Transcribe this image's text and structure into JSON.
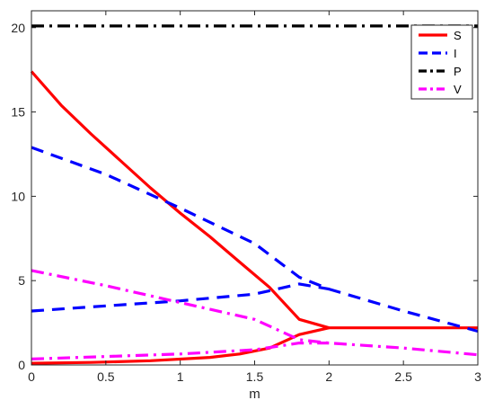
{
  "chart_data": {
    "type": "line",
    "title": "",
    "xlabel": "m",
    "ylabel": "",
    "xlim": [
      0,
      3
    ],
    "ylim": [
      0,
      21
    ],
    "xticks": [
      0,
      0.5,
      1,
      1.5,
      2,
      2.5,
      3
    ],
    "xtick_labels": [
      "0",
      "0.5",
      "1",
      "1.5",
      "2",
      "2.5",
      "3"
    ],
    "yticks": [
      0,
      5,
      10,
      15,
      20
    ],
    "ytick_labels": [
      "0",
      "5",
      "10",
      "15",
      "20"
    ],
    "grid": false,
    "legend_position": "top-right",
    "legend": [
      {
        "name": "S",
        "color": "#ff0000",
        "style": "solid"
      },
      {
        "name": "I",
        "color": "#0000ff",
        "style": "dashed"
      },
      {
        "name": "P",
        "color": "#000000",
        "style": "dashdot"
      },
      {
        "name": "V",
        "color": "#ff00ff",
        "style": "dashdot"
      }
    ],
    "series": [
      {
        "name": "S",
        "color": "#ff0000",
        "style": "solid",
        "branch": "upper",
        "points": [
          [
            0,
            17.4
          ],
          [
            0.2,
            15.4
          ],
          [
            0.4,
            13.7
          ],
          [
            0.6,
            12.1
          ],
          [
            0.8,
            10.5
          ],
          [
            1.0,
            9.0
          ],
          [
            1.2,
            7.6
          ],
          [
            1.4,
            6.1
          ],
          [
            1.6,
            4.6
          ],
          [
            1.8,
            2.7
          ],
          [
            2.0,
            2.2
          ],
          [
            2.5,
            2.2
          ],
          [
            3.0,
            2.2
          ]
        ]
      },
      {
        "name": "S",
        "color": "#ff0000",
        "style": "solid",
        "branch": "lower",
        "points": [
          [
            0,
            0.1
          ],
          [
            0.4,
            0.15
          ],
          [
            0.8,
            0.25
          ],
          [
            1.2,
            0.45
          ],
          [
            1.4,
            0.65
          ],
          [
            1.6,
            1.0
          ],
          [
            1.8,
            1.8
          ],
          [
            2.0,
            2.2
          ]
        ]
      },
      {
        "name": "I",
        "color": "#0000ff",
        "style": "dashed",
        "branch": "upper",
        "points": [
          [
            0,
            12.9
          ],
          [
            0.5,
            11.3
          ],
          [
            1.0,
            9.3
          ],
          [
            1.5,
            7.2
          ],
          [
            1.8,
            5.2
          ],
          [
            2.0,
            4.5
          ],
          [
            2.5,
            3.2
          ],
          [
            3.0,
            2.0
          ]
        ]
      },
      {
        "name": "I",
        "color": "#0000ff",
        "style": "dashed",
        "branch": "lower",
        "points": [
          [
            0,
            3.2
          ],
          [
            0.5,
            3.5
          ],
          [
            1.0,
            3.8
          ],
          [
            1.5,
            4.2
          ],
          [
            1.8,
            4.8
          ],
          [
            2.0,
            4.5
          ]
        ]
      },
      {
        "name": "P",
        "color": "#000000",
        "style": "dashdot",
        "points": [
          [
            0,
            20.1
          ],
          [
            3.0,
            20.1
          ]
        ]
      },
      {
        "name": "V",
        "color": "#ff00ff",
        "style": "dashdot",
        "branch": "upper",
        "points": [
          [
            0,
            5.6
          ],
          [
            0.5,
            4.7
          ],
          [
            1.0,
            3.7
          ],
          [
            1.5,
            2.7
          ],
          [
            1.8,
            1.5
          ],
          [
            2.0,
            1.3
          ],
          [
            2.5,
            1.0
          ],
          [
            3.0,
            0.6
          ]
        ]
      },
      {
        "name": "V",
        "color": "#ff00ff",
        "style": "dashdot",
        "branch": "lower",
        "points": [
          [
            0,
            0.35
          ],
          [
            0.5,
            0.5
          ],
          [
            1.0,
            0.65
          ],
          [
            1.5,
            0.9
          ],
          [
            1.8,
            1.3
          ],
          [
            2.0,
            1.3
          ]
        ]
      }
    ]
  }
}
